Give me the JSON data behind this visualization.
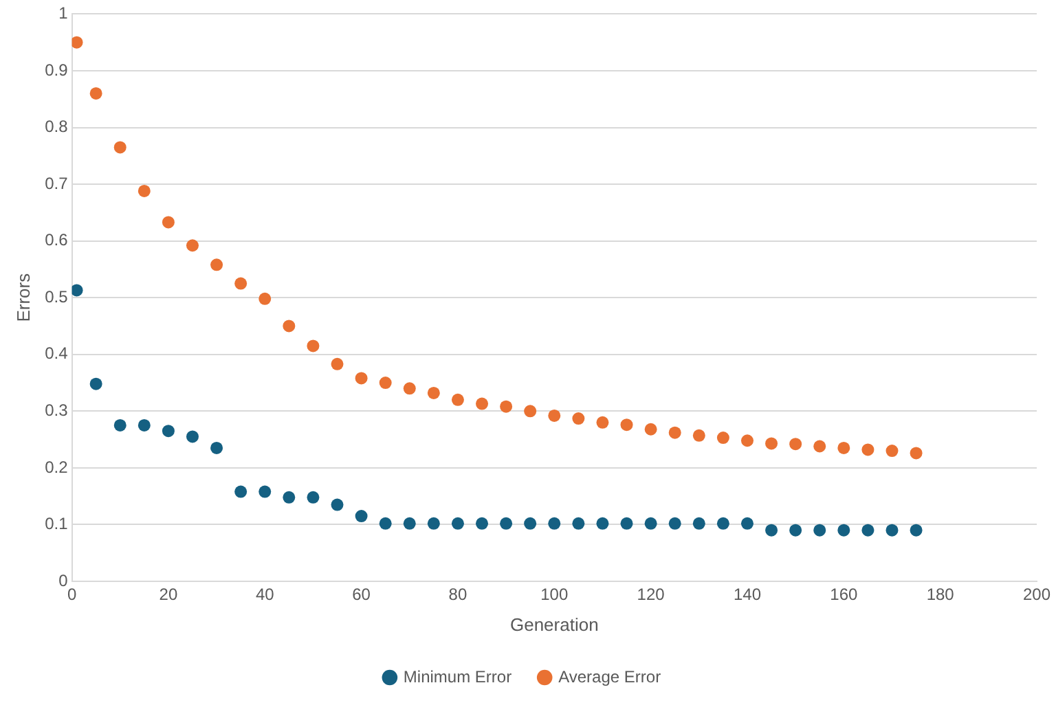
{
  "chart_data": {
    "type": "scatter",
    "xlabel": "Generation",
    "ylabel": "Errors",
    "x": [
      1,
      5,
      10,
      15,
      20,
      25,
      30,
      35,
      40,
      45,
      50,
      55,
      60,
      65,
      70,
      75,
      80,
      85,
      90,
      95,
      100,
      105,
      110,
      115,
      120,
      125,
      130,
      135,
      140,
      145,
      150,
      155,
      160,
      165,
      170,
      175
    ],
    "series": [
      {
        "name": "Minimum Error",
        "color": "#156082",
        "values": [
          0.513,
          0.348,
          0.275,
          0.275,
          0.265,
          0.255,
          0.235,
          0.158,
          0.158,
          0.148,
          0.148,
          0.135,
          0.115,
          0.102,
          0.102,
          0.102,
          0.102,
          0.102,
          0.102,
          0.102,
          0.102,
          0.102,
          0.102,
          0.102,
          0.102,
          0.102,
          0.102,
          0.102,
          0.102,
          0.09,
          0.09,
          0.09,
          0.09,
          0.09,
          0.09,
          0.09
        ]
      },
      {
        "name": "Average Error",
        "color": "#e97132",
        "values": [
          0.95,
          0.86,
          0.765,
          0.688,
          0.633,
          0.592,
          0.558,
          0.525,
          0.498,
          0.45,
          0.415,
          0.383,
          0.358,
          0.35,
          0.34,
          0.332,
          0.32,
          0.313,
          0.308,
          0.3,
          0.292,
          0.287,
          0.28,
          0.276,
          0.268,
          0.262,
          0.257,
          0.253,
          0.248,
          0.243,
          0.242,
          0.238,
          0.235,
          0.232,
          0.23,
          0.226
        ]
      }
    ],
    "xlim": [
      0,
      200
    ],
    "xticks": [
      0,
      20,
      40,
      60,
      80,
      100,
      120,
      140,
      160,
      180,
      200
    ],
    "ylim": [
      0,
      1
    ],
    "yticks": [
      0,
      0.1,
      0.2,
      0.3,
      0.4,
      0.5,
      0.6,
      0.7,
      0.8,
      0.9,
      1
    ],
    "grid": "y",
    "legend": "bottom",
    "marker": "circle"
  }
}
